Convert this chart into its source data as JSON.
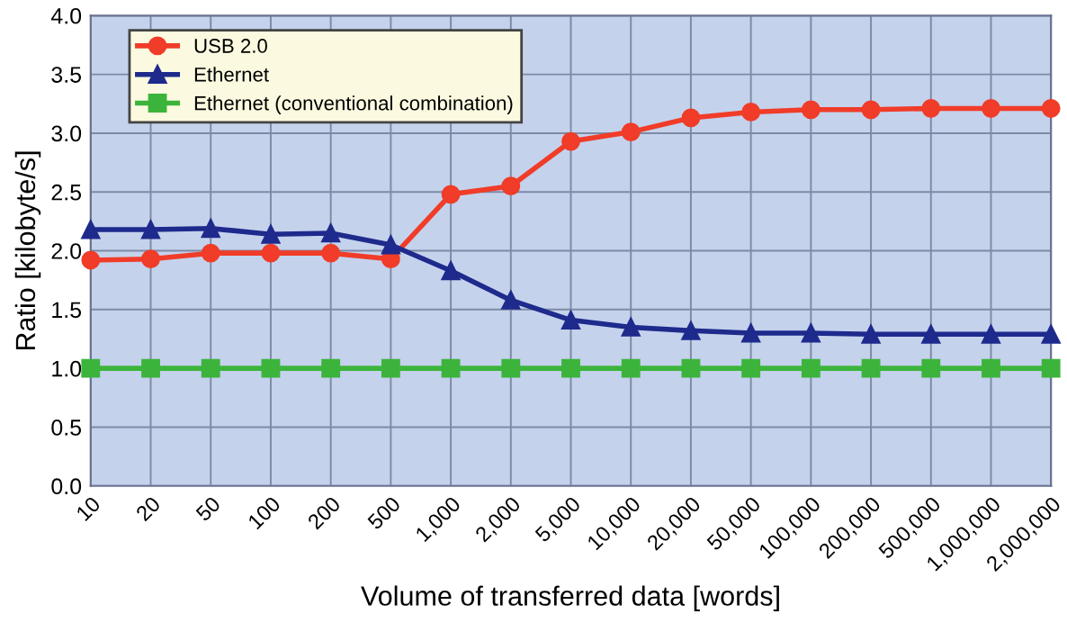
{
  "chart_data": {
    "type": "line",
    "xlabel": "Volume of transferred data [words]",
    "ylabel": "Ratio [kilobyte/s]",
    "categories": [
      "10",
      "20",
      "50",
      "100",
      "200",
      "500",
      "1,000",
      "2,000",
      "5,000",
      "10,000",
      "20,000",
      "50,000",
      "100,000",
      "200,000",
      "500,000",
      "1,000,000",
      "2,000,000"
    ],
    "series": [
      {
        "name": "USB 2.0",
        "color": "#f03c28",
        "marker": "circle",
        "values": [
          1.92,
          1.93,
          1.98,
          1.98,
          1.98,
          1.93,
          2.48,
          2.55,
          2.93,
          3.01,
          3.13,
          3.18,
          3.2,
          3.2,
          3.21,
          3.21,
          3.21
        ]
      },
      {
        "name": "Ethernet",
        "color": "#1e2a8c",
        "marker": "triangle",
        "values": [
          2.18,
          2.18,
          2.19,
          2.14,
          2.15,
          2.05,
          1.83,
          1.58,
          1.41,
          1.35,
          1.32,
          1.3,
          1.3,
          1.29,
          1.29,
          1.29,
          1.29
        ]
      },
      {
        "name": "Ethernet (conventional combination)",
        "color": "#3cb43c",
        "marker": "square",
        "values": [
          1.0,
          1.0,
          1.0,
          1.0,
          1.0,
          1.0,
          1.0,
          1.0,
          1.0,
          1.0,
          1.0,
          1.0,
          1.0,
          1.0,
          1.0,
          1.0,
          1.0
        ]
      }
    ],
    "ylim": [
      0,
      4
    ],
    "yticks": [
      {
        "value": 0,
        "label": "0.0"
      },
      {
        "value": 0.5,
        "label": "0.5"
      },
      {
        "value": 1,
        "label": "1.0"
      },
      {
        "value": 1.5,
        "label": "1.5"
      },
      {
        "value": 2,
        "label": "2.0"
      },
      {
        "value": 2.5,
        "label": "2.5"
      },
      {
        "value": 3,
        "label": "3.0"
      },
      {
        "value": 3.5,
        "label": "3.5"
      },
      {
        "value": 4,
        "label": "4.0"
      }
    ],
    "grid": true,
    "legend": "top left",
    "line_style": "solid"
  }
}
